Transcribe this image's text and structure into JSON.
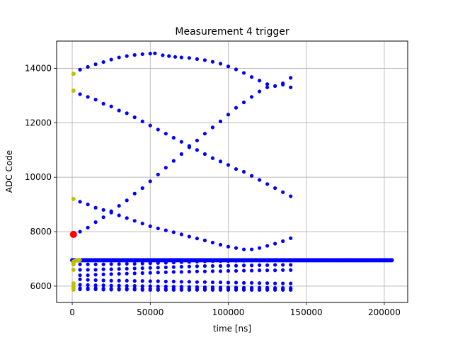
{
  "chart_data": {
    "type": "scatter",
    "title": "Measurement 4 trigger",
    "xlabel": "time [ns]",
    "ylabel": "ADC Code",
    "xlim": [
      -10000,
      215000
    ],
    "ylim": [
      5400,
      15000
    ],
    "xticks": [
      0,
      50000,
      100000,
      150000,
      200000
    ],
    "yticks": [
      6000,
      8000,
      10000,
      12000,
      14000
    ],
    "grid": true,
    "colors": {
      "main": "#0000ff",
      "early": "#bfbf00",
      "trigger": "#ff0000"
    },
    "series": [
      {
        "role": "baseline",
        "x_range": [
          0,
          204800
        ],
        "step": 800,
        "y": 6950
      },
      {
        "role": "upper-arc",
        "x": [
          5000,
          10000,
          15000,
          20000,
          25000,
          30000,
          35000,
          40000,
          45000,
          50000,
          53000,
          58000,
          62000,
          66000,
          70000,
          75000,
          80000,
          85000,
          90000,
          95000,
          100000,
          105000,
          110000,
          115000,
          120000,
          125000,
          130000,
          135000,
          140000
        ],
        "y": [
          13950,
          14050,
          14150,
          14230,
          14320,
          14400,
          14450,
          14490,
          14520,
          14540,
          14550,
          14480,
          14450,
          14420,
          14400,
          14380,
          14340,
          14300,
          14240,
          14170,
          14070,
          13960,
          13830,
          13680,
          13550,
          13420,
          13350,
          13450,
          13650
        ]
      },
      {
        "role": "descending-upper",
        "x": [
          5000,
          10000,
          15000,
          20000,
          25000,
          30000,
          35000,
          40000,
          45000,
          50000,
          55000,
          60000,
          65000,
          70000,
          75000,
          80000,
          85000,
          90000,
          95000,
          100000,
          105000,
          110000,
          115000,
          120000,
          125000,
          130000,
          135000,
          140000
        ],
        "y": [
          13050,
          12950,
          12850,
          12700,
          12600,
          12450,
          12350,
          12200,
          12050,
          11900,
          11750,
          11600,
          11450,
          11300,
          11150,
          11000,
          10850,
          10700,
          10580,
          10450,
          10300,
          10200,
          10050,
          9900,
          9750,
          9600,
          9450,
          9300
        ]
      },
      {
        "role": "ascending",
        "x": [
          5000,
          10000,
          15000,
          20000,
          25000,
          30000,
          35000,
          40000,
          45000,
          50000,
          55000,
          60000,
          65000,
          70000,
          75000,
          80000,
          85000,
          90000,
          95000,
          100000,
          105000,
          110000,
          115000,
          120000,
          125000,
          130000,
          135000,
          140000
        ],
        "y": [
          8000,
          8150,
          8350,
          8530,
          8750,
          8950,
          9150,
          9400,
          9600,
          9850,
          10100,
          10350,
          10600,
          10850,
          11100,
          11350,
          11600,
          11830,
          12050,
          12300,
          12550,
          12750,
          12950,
          13150,
          13300,
          13350,
          13400,
          13300
        ]
      },
      {
        "role": "lower-arc",
        "x": [
          5000,
          10000,
          15000,
          20000,
          25000,
          30000,
          35000,
          40000,
          45000,
          50000,
          55000,
          60000,
          65000,
          70000,
          75000,
          80000,
          85000,
          90000,
          95000,
          100000,
          105000,
          110000,
          115000,
          120000,
          125000,
          130000,
          135000,
          140000
        ],
        "y": [
          9100,
          9000,
          8880,
          8800,
          8700,
          8600,
          8500,
          8400,
          8300,
          8200,
          8120,
          8050,
          7980,
          7900,
          7820,
          7750,
          7680,
          7600,
          7520,
          7450,
          7400,
          7350,
          7350,
          7400,
          7480,
          7560,
          7650,
          7760
        ]
      },
      {
        "role": "band-1",
        "x": [
          5000,
          10000,
          15000,
          20000,
          25000,
          30000,
          35000,
          40000,
          45000,
          50000,
          55000,
          60000,
          65000,
          70000,
          75000,
          80000,
          85000,
          90000,
          95000,
          100000,
          105000,
          110000,
          115000,
          120000,
          125000,
          130000,
          135000,
          140000
        ],
        "y": [
          6800,
          6800,
          6800,
          6800,
          6810,
          6810,
          6820,
          6820,
          6830,
          6840,
          6850,
          6860,
          6870,
          6880,
          6890,
          6900,
          6910,
          6920,
          6920,
          6920,
          6930,
          6930,
          6940,
          6940,
          6950,
          6950,
          6950,
          6950
        ]
      },
      {
        "role": "band-2",
        "x": [
          5000,
          10000,
          15000,
          20000,
          25000,
          30000,
          35000,
          40000,
          45000,
          50000,
          55000,
          60000,
          65000,
          70000,
          75000,
          80000,
          85000,
          90000,
          95000,
          100000,
          105000,
          110000,
          115000,
          120000,
          125000,
          130000,
          135000,
          140000
        ],
        "y": [
          6600,
          6600,
          6600,
          6620,
          6620,
          6630,
          6640,
          6650,
          6660,
          6670,
          6680,
          6690,
          6700,
          6710,
          6720,
          6730,
          6740,
          6740,
          6740,
          6750,
          6750,
          6760,
          6760,
          6770,
          6770,
          6780,
          6780,
          6780
        ]
      },
      {
        "role": "band-3",
        "x": [
          5000,
          10000,
          15000,
          20000,
          25000,
          30000,
          35000,
          40000,
          45000,
          50000,
          55000,
          60000,
          65000,
          70000,
          75000,
          80000,
          85000,
          90000,
          95000,
          100000,
          105000,
          110000,
          115000,
          120000,
          125000,
          130000,
          135000,
          140000
        ],
        "y": [
          6400,
          6400,
          6420,
          6430,
          6440,
          6450,
          6460,
          6470,
          6480,
          6490,
          6500,
          6510,
          6520,
          6520,
          6530,
          6540,
          6540,
          6550,
          6550,
          6560,
          6560,
          6570,
          6570,
          6580,
          6580,
          6580,
          6590,
          6590
        ]
      },
      {
        "role": "band-4",
        "x": [
          5000,
          10000,
          15000,
          20000,
          25000,
          30000,
          35000,
          40000,
          45000,
          50000,
          55000,
          60000,
          65000,
          70000,
          75000,
          80000,
          85000,
          90000,
          95000,
          100000,
          105000,
          110000,
          115000,
          120000,
          125000,
          130000,
          135000,
          140000
        ],
        "y": [
          6250,
          6230,
          6220,
          6210,
          6200,
          6200,
          6200,
          6190,
          6190,
          6180,
          6180,
          6170,
          6170,
          6160,
          6160,
          6150,
          6150,
          6140,
          6140,
          6130,
          6130,
          6120,
          6120,
          6110,
          6110,
          6100,
          6100,
          6100
        ]
      },
      {
        "role": "band-5",
        "x": [
          5000,
          10000,
          15000,
          20000,
          25000,
          30000,
          35000,
          40000,
          45000,
          50000,
          55000,
          60000,
          65000,
          70000,
          75000,
          80000,
          85000,
          90000,
          95000,
          100000,
          105000,
          110000,
          115000,
          120000,
          125000,
          130000,
          135000,
          140000
        ],
        "y": [
          6050,
          6040,
          6030,
          6030,
          6020,
          6020,
          6010,
          6010,
          6000,
          6000,
          5990,
          5990,
          5980,
          5980,
          5970,
          5970,
          5960,
          5960,
          5950,
          5950,
          5950,
          5940,
          5940,
          5940,
          5940,
          5930,
          5930,
          5930
        ]
      },
      {
        "role": "floor",
        "x": [
          5000,
          10000,
          15000,
          20000,
          25000,
          30000,
          35000,
          40000,
          45000,
          50000,
          55000,
          60000,
          65000,
          70000,
          75000,
          80000,
          85000,
          90000,
          95000,
          100000,
          105000,
          110000,
          115000,
          120000,
          125000,
          130000,
          135000,
          140000
        ],
        "y": [
          5880,
          5880,
          5880,
          5870,
          5870,
          5870,
          5870,
          5870,
          5860,
          5860,
          5860,
          5860,
          5860,
          5860,
          5860,
          5860,
          5860,
          5860,
          5860,
          5860,
          5860,
          5860,
          5860,
          5860,
          5860,
          5860,
          5860,
          5860
        ]
      },
      {
        "role": "floor-b",
        "x": [
          5000,
          10000,
          15000,
          20000,
          25000,
          30000,
          35000,
          40000,
          45000,
          50000,
          55000,
          60000,
          65000,
          70000,
          75000,
          80000,
          85000,
          90000,
          95000,
          100000,
          105000,
          110000,
          115000,
          120000,
          125000,
          130000,
          135000,
          140000
        ],
        "y": [
          5920,
          5920,
          5920,
          5910,
          5910,
          5910,
          5910,
          5910,
          5900,
          5900,
          5900,
          5900,
          5900,
          5900,
          5900,
          5900,
          5900,
          5900,
          5900,
          5900,
          5900,
          5900,
          5900,
          5900,
          5900,
          5900,
          5900,
          5900
        ]
      },
      {
        "role": "early",
        "x": [
          800,
          800,
          800,
          800,
          800,
          800,
          800,
          800,
          800,
          800,
          1600,
          2400,
          3200,
          4000,
          4800,
          800
        ],
        "y": [
          13800,
          13180,
          9200,
          6900,
          6850,
          6800,
          6600,
          6100,
          5920,
          5870,
          6920,
          6940,
          6950,
          6950,
          6950,
          6000
        ]
      },
      {
        "role": "trigger",
        "x": [
          800
        ],
        "y": [
          7900
        ]
      }
    ]
  }
}
